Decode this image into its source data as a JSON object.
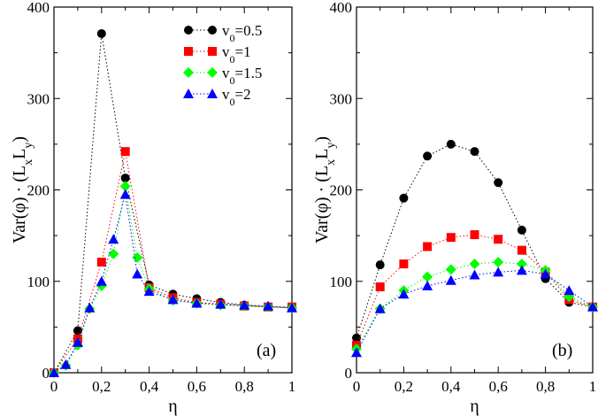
{
  "chart_data": [
    {
      "type": "scatter",
      "panel_label": "(a)",
      "xlabel": "η",
      "ylabel_parts": [
        "Var(φ) · (L",
        "x",
        "L",
        "y",
        ")"
      ],
      "xlim": [
        0,
        1
      ],
      "ylim": [
        0,
        400
      ],
      "xticks": [
        0,
        0.2,
        0.4,
        0.6,
        0.8,
        1
      ],
      "xtick_labels": [
        "0",
        "0,2",
        "0,4",
        "0,6",
        "0,8",
        "1"
      ],
      "yticks": [
        0,
        100,
        200,
        300,
        400
      ],
      "ytick_labels": [
        "0",
        "100",
        "200",
        "300",
        "400"
      ],
      "legend": {
        "placement": "top-right",
        "entries": [
          {
            "main": "v",
            "sub": "0",
            "rest": "=0.5"
          },
          {
            "main": "v",
            "sub": "0",
            "rest": "=1"
          },
          {
            "main": "v",
            "sub": "0",
            "rest": "=1.5"
          },
          {
            "main": "v",
            "sub": "0",
            "rest": "=2"
          }
        ]
      },
      "series": [
        {
          "marker": "circle",
          "color": "#000000",
          "x": [
            0,
            0.1,
            0.2,
            0.3,
            0.4,
            0.5,
            0.6,
            0.7,
            0.8,
            0.9,
            1
          ],
          "y": [
            0,
            46,
            371,
            213,
            96,
            86,
            81,
            77,
            74,
            72,
            71
          ]
        },
        {
          "marker": "square",
          "color": "#ff0000",
          "x": [
            0,
            0.1,
            0.2,
            0.3,
            0.4,
            0.5,
            0.6,
            0.7,
            0.8,
            0.9,
            1
          ],
          "y": [
            0,
            37,
            121,
            242,
            93,
            82,
            77,
            75,
            73,
            72,
            72
          ]
        },
        {
          "marker": "diamond",
          "color": "#00ff00",
          "x": [
            0,
            0.05,
            0.1,
            0.15,
            0.2,
            0.25,
            0.3,
            0.35,
            0.4,
            0.5,
            0.6,
            0.7,
            0.8,
            0.9,
            1
          ],
          "y": [
            0,
            8,
            30,
            70,
            95,
            130,
            204,
            126,
            92,
            79,
            76,
            74,
            73,
            72,
            71
          ]
        },
        {
          "marker": "triangle",
          "color": "#0000ff",
          "x": [
            0,
            0.05,
            0.1,
            0.15,
            0.2,
            0.25,
            0.3,
            0.35,
            0.4,
            0.5,
            0.6,
            0.7,
            0.8,
            0.9,
            1
          ],
          "y": [
            0,
            9,
            33,
            71,
            100,
            146,
            195,
            108,
            89,
            80,
            76,
            75,
            74,
            73,
            71
          ]
        }
      ]
    },
    {
      "type": "scatter",
      "panel_label": "(b)",
      "xlabel": "η",
      "ylabel_parts": [
        "Var(φ) · (L",
        "x",
        "L",
        "y",
        ")"
      ],
      "xlim": [
        0,
        1
      ],
      "ylim": [
        0,
        400
      ],
      "xticks": [
        0,
        0.2,
        0.4,
        0.6,
        0.8,
        1
      ],
      "xtick_labels": [
        "0",
        "0,2",
        "0,4",
        "0,6",
        "0,8",
        "1"
      ],
      "yticks": [
        0,
        100,
        200,
        300,
        400
      ],
      "ytick_labels": [
        "0",
        "100",
        "200",
        "300",
        "400"
      ],
      "series": [
        {
          "marker": "circle",
          "color": "#000000",
          "x": [
            0,
            0.1,
            0.2,
            0.3,
            0.4,
            0.5,
            0.6,
            0.7,
            0.8,
            0.9,
            1
          ],
          "y": [
            38,
            118,
            191,
            237,
            250,
            242,
            208,
            156,
            103,
            77,
            72
          ]
        },
        {
          "marker": "square",
          "color": "#ff0000",
          "x": [
            0,
            0.1,
            0.2,
            0.3,
            0.4,
            0.5,
            0.6,
            0.7,
            0.8,
            0.9,
            1
          ],
          "y": [
            30,
            94,
            119,
            138,
            148,
            151,
            146,
            134,
            110,
            80,
            72
          ]
        },
        {
          "marker": "diamond",
          "color": "#00ff00",
          "x": [
            0,
            0.1,
            0.2,
            0.3,
            0.4,
            0.5,
            0.6,
            0.7,
            0.8,
            0.9,
            1
          ],
          "y": [
            26,
            70,
            90,
            105,
            113,
            119,
            121,
            119,
            112,
            83,
            72
          ]
        },
        {
          "marker": "triangle",
          "color": "#0000ff",
          "x": [
            0,
            0.1,
            0.2,
            0.3,
            0.4,
            0.5,
            0.6,
            0.7,
            0.8,
            0.9,
            1
          ],
          "y": [
            22,
            70,
            86,
            95,
            101,
            107,
            110,
            112,
            108,
            90,
            72
          ]
        }
      ]
    }
  ]
}
